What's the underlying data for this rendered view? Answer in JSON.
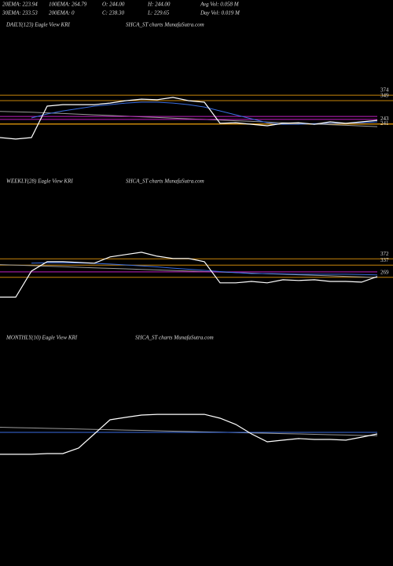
{
  "header": {
    "stats": [
      [
        "20EMA: 223.94",
        "100EMA: 264.79",
        "O: 244.00",
        "H: 244.00",
        "Avg Vol: 0.058  M"
      ],
      [
        "30EMA: 233.53",
        "200EMA: 0",
        "C: 238.30",
        "L: 229.65",
        "Day Vol: 0.019 M"
      ]
    ]
  },
  "chart_data": [
    {
      "type": "line",
      "title": "DAILY(123) Eagle  View  KRI",
      "subtitle": "SHCA_ST charts MunafaSutra.com",
      "ylim": [
        0,
        666
      ],
      "yticks": [
        374,
        349,
        243,
        241
      ],
      "tick_color": "#c8860a",
      "series": [
        {
          "color": "#9a9a9a",
          "values": [
            300,
            298,
            296,
            293,
            290,
            287,
            284,
            281,
            278,
            275,
            272,
            269,
            266,
            263,
            260,
            257,
            254,
            251,
            248,
            245,
            242,
            239,
            236,
            233,
            230
          ]
        },
        {
          "color": "#c020c0",
          "values": [
            277,
            277,
            277,
            277,
            277,
            277,
            277,
            277,
            277,
            277,
            277,
            277,
            277,
            277,
            277,
            277,
            277,
            277,
            277,
            277,
            277,
            277,
            277,
            277,
            277
          ]
        },
        {
          "color": "#c020c0",
          "values": [
            263,
            263,
            263,
            263,
            263,
            263,
            263,
            263,
            263,
            263,
            263,
            263,
            263,
            263,
            263,
            263,
            263,
            263,
            263,
            263,
            263,
            263,
            263,
            263,
            263
          ]
        },
        {
          "color": "#3a6de0",
          "values": [
            null,
            null,
            270,
            288,
            302,
            313,
            324,
            331,
            338,
            342,
            342,
            338,
            331,
            320,
            302,
            284,
            266,
            248,
            241,
            241,
            244,
            245,
            245,
            248,
            252
          ]
        },
        {
          "color": "#ffffff",
          "values": [
            180,
            173,
            180,
            324,
            331,
            331,
            331,
            338,
            349,
            356,
            353,
            364,
            349,
            342,
            245,
            248,
            241,
            234,
            245,
            248,
            241,
            252,
            245,
            252,
            259
          ]
        }
      ]
    },
    {
      "type": "line",
      "title": "WEEKLY(28) Eagle  View  KRI",
      "subtitle": "SHCA_ST charts MunafaSutra.com",
      "ylim": [
        0,
        808
      ],
      "yticks": [
        372,
        337,
        269
      ],
      "tick_color": "#c8860a",
      "series": [
        {
          "color": "#9a9a9a",
          "values": [
            340,
            337,
            334,
            331,
            328,
            325,
            322,
            319,
            316,
            313,
            310,
            307,
            304,
            301,
            298,
            295,
            292,
            289,
            286,
            283,
            280,
            277,
            274,
            271,
            268
          ]
        },
        {
          "color": "#c020c0",
          "values": [
            299,
            299,
            299,
            299,
            299,
            299,
            299,
            299,
            299,
            299,
            299,
            299,
            299,
            299,
            299,
            299,
            299,
            299,
            299,
            299,
            299,
            299,
            299,
            299,
            299
          ]
        },
        {
          "color": "#3a6de0",
          "values": [
            null,
            null,
            348,
            350,
            350,
            349,
            347,
            343,
            338,
            333,
            327,
            320,
            314,
            308,
            301,
            295,
            290,
            290,
            288,
            286,
            286,
            286,
            286,
            284,
            282
          ]
        },
        {
          "color": "#ffffff",
          "values": [
            158,
            158,
            304,
            356,
            356,
            352,
            348,
            383,
            396,
            409,
            387,
            374,
            374,
            356,
            238,
            238,
            246,
            238,
            255,
            251,
            255,
            246,
            246,
            242,
            273
          ]
        }
      ]
    },
    {
      "type": "line",
      "title": "MONTHLY(10) Eagle  View  KRI",
      "subtitle": "SHCA_ST charts MunafaSutra.com",
      "ylim": [
        0,
        800
      ],
      "yticks": [],
      "tick_color": "#c8860a",
      "series": [
        {
          "color": "#9a9a9a",
          "values": [
            340,
            338,
            336,
            334,
            332,
            330,
            328,
            326,
            324,
            322,
            320,
            318,
            316,
            314,
            312,
            310,
            308,
            306,
            304,
            302,
            300,
            298,
            296,
            294,
            292
          ]
        },
        {
          "color": "#3a6de0",
          "values": [
            311,
            311,
            311,
            311,
            311,
            311,
            311,
            311,
            311,
            311,
            311,
            311,
            311,
            311,
            311,
            311,
            311,
            311,
            311,
            311,
            311,
            311,
            311,
            311,
            311
          ]
        },
        {
          "color": "#ffffff",
          "values": [
            187,
            187,
            187,
            191,
            191,
            222,
            302,
            382,
            396,
            409,
            413,
            413,
            413,
            413,
            391,
            356,
            302,
            258,
            267,
            276,
            271,
            271,
            267,
            284,
            302
          ]
        }
      ]
    }
  ]
}
